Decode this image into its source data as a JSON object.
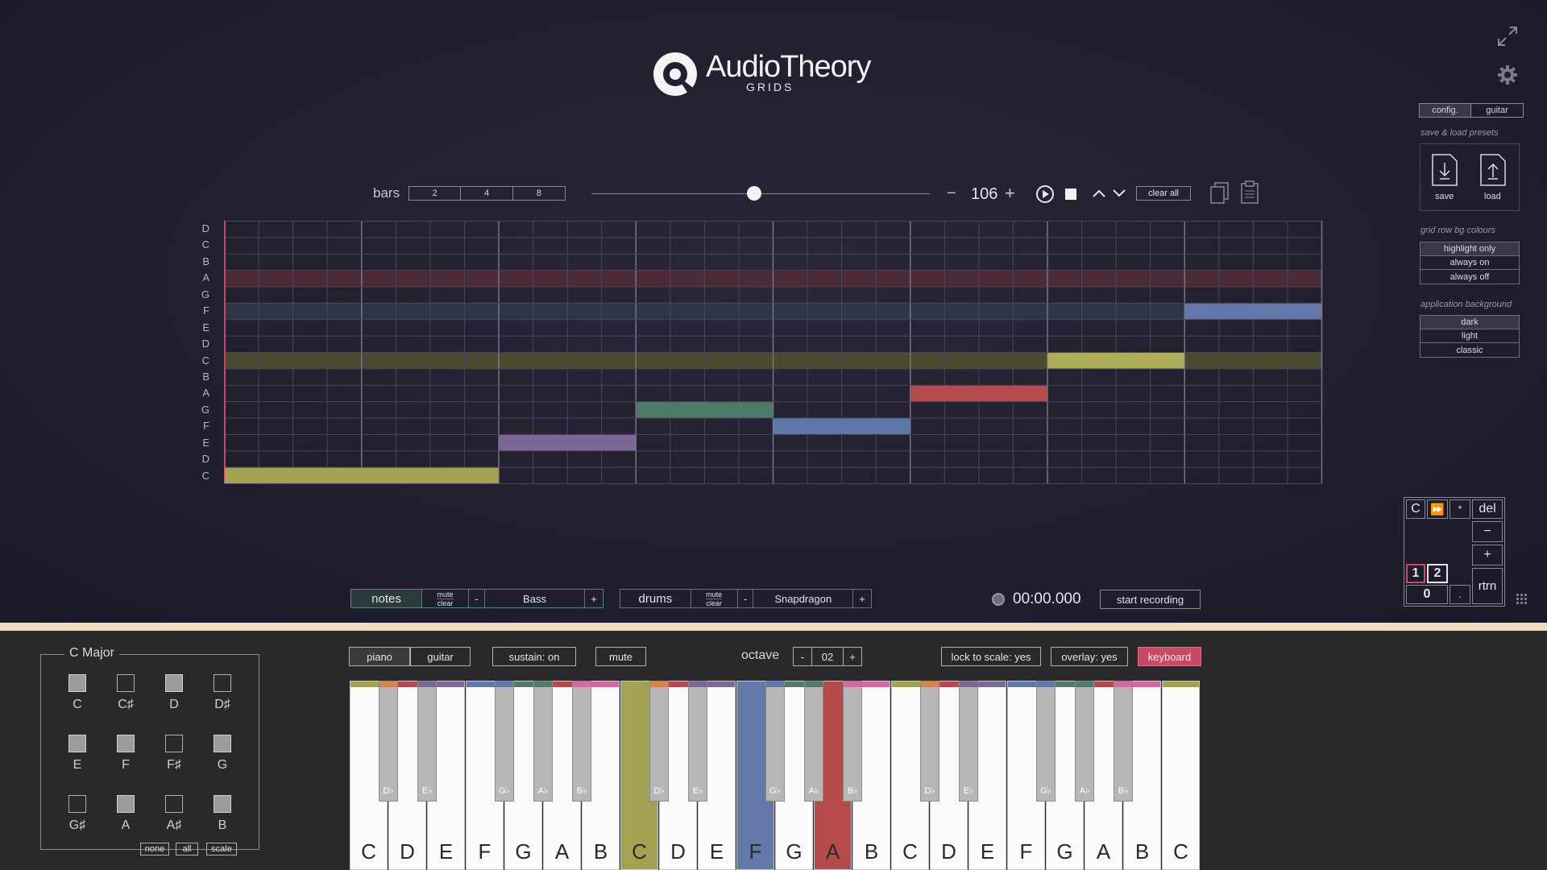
{
  "logo": {
    "brand": "AudioTheory",
    "sub": "GRIDS"
  },
  "transport": {
    "bars_label": "bars",
    "bars_options": [
      "2",
      "4",
      "8"
    ],
    "tempo_minus": "−",
    "tempo": "106",
    "tempo_plus": "+",
    "slider_fraction": 0.48,
    "clear_all": "clear all"
  },
  "grid": {
    "row_labels": [
      "D",
      "C",
      "B",
      "A",
      "G",
      "F",
      "E",
      "D",
      "C",
      "B",
      "A",
      "G",
      "F",
      "E",
      "D",
      "C"
    ],
    "columns": 32,
    "highlight_rows": [
      {
        "row": 3,
        "color": "#4a2a36"
      },
      {
        "row": 5,
        "color": "#2e3548"
      },
      {
        "row": 8,
        "color": "#4a4a30"
      }
    ],
    "notes": [
      {
        "row": 15,
        "start": 0,
        "length": 8,
        "color": "#a3a152"
      },
      {
        "row": 13,
        "start": 8,
        "length": 4,
        "color": "#7b6795"
      },
      {
        "row": 11,
        "start": 12,
        "length": 4,
        "color": "#4f7a68"
      },
      {
        "row": 12,
        "start": 16,
        "length": 4,
        "color": "#5e78a8"
      },
      {
        "row": 10,
        "start": 20,
        "length": 4,
        "color": "#b54a4c"
      },
      {
        "row": 8,
        "start": 24,
        "length": 4,
        "color": "#b0ad5a"
      },
      {
        "row": 5,
        "start": 28,
        "length": 4,
        "color": "#6477aa"
      }
    ]
  },
  "right_panel": {
    "tabs": [
      "config.",
      "guitar"
    ],
    "presets_label": "save & load presets",
    "save": "save",
    "load": "load",
    "row_bg_label": "grid row bg colours",
    "row_bg_options": [
      "highlight only",
      "always on",
      "always off"
    ],
    "app_bg_label": "application background",
    "app_bg_options": [
      "dark",
      "light",
      "classic"
    ]
  },
  "numpad": {
    "c": "C",
    "ff": "⏩",
    "star": "*",
    "del": "del",
    "minus": "−",
    "plus": "+",
    "one": "1",
    "two": "2",
    "zero": "0",
    "dot": ".",
    "rtrn": "rtrn"
  },
  "tracks": [
    {
      "name": "notes",
      "mute": "mute",
      "clear": "clear",
      "minus": "-",
      "instrument": "Bass",
      "plus": "+"
    },
    {
      "name": "drums",
      "mute": "mute",
      "clear": "clear",
      "minus": "-",
      "instrument": "Snapdragon",
      "plus": "+"
    }
  ],
  "recording": {
    "time": "00:00.000",
    "start": "start recording"
  },
  "scale": {
    "title": "C Major",
    "notes": [
      {
        "name": "C",
        "on": true
      },
      {
        "name": "C♯",
        "on": false
      },
      {
        "name": "D",
        "on": true
      },
      {
        "name": "D♯",
        "on": false
      },
      {
        "name": "E",
        "on": true
      },
      {
        "name": "F",
        "on": true
      },
      {
        "name": "F♯",
        "on": false
      },
      {
        "name": "G",
        "on": true
      },
      {
        "name": "G♯",
        "on": false
      },
      {
        "name": "A",
        "on": true
      },
      {
        "name": "A♯",
        "on": false
      },
      {
        "name": "B",
        "on": true
      }
    ],
    "buttons": [
      "none",
      "all",
      "scale"
    ]
  },
  "controls": {
    "piano": "piano",
    "guitar": "guitar",
    "sustain": "sustain: on",
    "mute": "mute",
    "octave_label": "octave",
    "octave_minus": "-",
    "octave": "02",
    "octave_plus": "+",
    "lock": "lock to scale: yes",
    "overlay": "overlay: yes",
    "keyboard": "keyboard"
  },
  "keyboard": {
    "white_keys": [
      "C",
      "D",
      "E",
      "F",
      "G",
      "A",
      "B",
      "C",
      "D",
      "E",
      "F",
      "G",
      "A",
      "B",
      "C",
      "D",
      "E",
      "F",
      "G",
      "A",
      "B",
      "C"
    ],
    "black_keys": [
      "D♭",
      "E♭",
      "G♭",
      "A♭",
      "B♭",
      "D♭",
      "E♭",
      "G♭",
      "A♭",
      "B♭",
      "D♭",
      "E♭",
      "G♭",
      "A♭",
      "B♭"
    ],
    "pressed": [
      {
        "index": 7,
        "color": "#a3a152"
      },
      {
        "index": 10,
        "color": "#6477aa"
      },
      {
        "index": 12,
        "color": "#b54a4c"
      }
    ],
    "colors": {
      "accent_red": "#c84a62",
      "C": "#a3a152",
      "Db": "#d4844e",
      "D": "#b54a4c",
      "Eb": "#7b6795",
      "E": "#7b6795",
      "F": "#5e78a8",
      "Gb": "#5e78a8",
      "G": "#4f7a68",
      "Ab": "#4f7a68",
      "A": "#b54a4c",
      "Bb": "#d26aa6",
      "B": "#d26aa6"
    }
  }
}
